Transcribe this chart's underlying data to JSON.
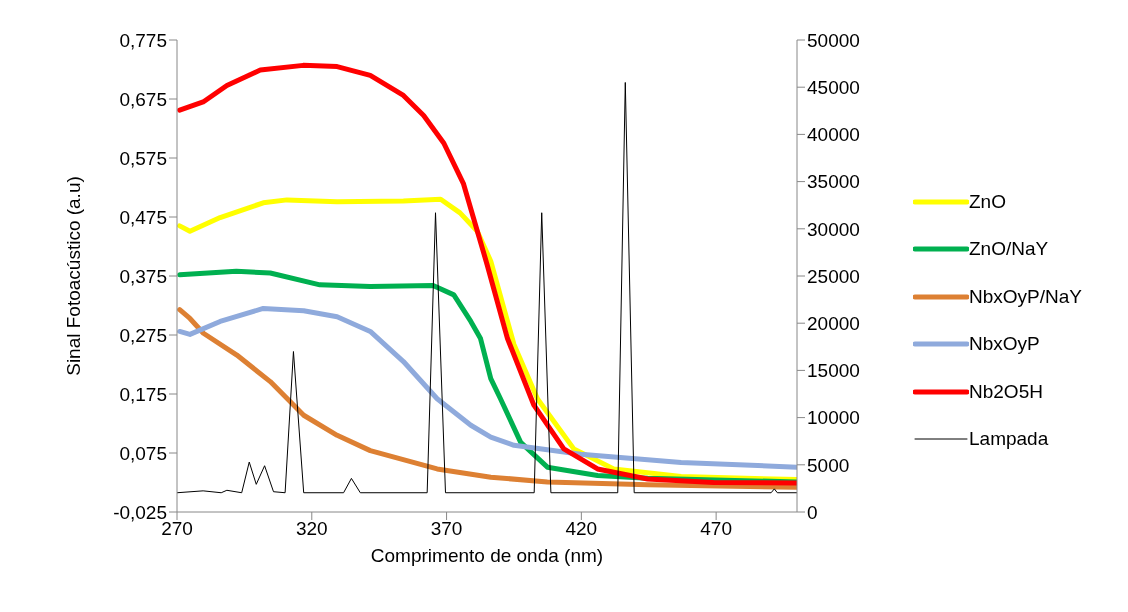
{
  "chart_data": {
    "type": "line",
    "xlabel": "Comprimento de onda (nm)",
    "ylabel": "Sinal Fotoacústico (a.u)",
    "xlim": [
      270,
      500
    ],
    "xticks": [
      270,
      320,
      370,
      420,
      470
    ],
    "ylim": [
      -0.025,
      0.775
    ],
    "yticks": [
      {
        "value": -0.025,
        "label": "-0,025"
      },
      {
        "value": 0.075,
        "label": "0,075"
      },
      {
        "value": 0.175,
        "label": "0,175"
      },
      {
        "value": 0.275,
        "label": "0,275"
      },
      {
        "value": 0.375,
        "label": "0,375"
      },
      {
        "value": 0.475,
        "label": "0,475"
      },
      {
        "value": 0.575,
        "label": "0,575"
      },
      {
        "value": 0.675,
        "label": "0,675"
      },
      {
        "value": 0.775,
        "label": "0,775"
      }
    ],
    "y2lim": [
      0,
      50000
    ],
    "y2ticks": [
      0,
      5000,
      10000,
      15000,
      20000,
      25000,
      30000,
      35000,
      40000,
      45000,
      50000
    ],
    "legend": "right",
    "series": [
      {
        "name": "ZnO",
        "color": "#ffff00",
        "x": [
          271,
          274.8,
          286,
          302,
          310.8,
          329.4,
          354,
          367.8,
          375,
          381.4,
          386.4,
          395,
          403.7,
          417.2,
          432,
          457,
          500
        ],
        "values": [
          0.46,
          0.451,
          0.474,
          0.499,
          0.504,
          0.501,
          0.502,
          0.505,
          0.482,
          0.451,
          0.4,
          0.259,
          0.167,
          0.082,
          0.048,
          0.035,
          0.03
        ]
      },
      {
        "name": "ZnO/NaY",
        "color": "#00b050",
        "x": [
          271,
          292,
          304.6,
          323,
          341.7,
          365,
          372.7,
          379,
          382.6,
          386.4,
          390,
          397.5,
          407.4,
          426,
          444.6,
          500
        ],
        "values": [
          0.377,
          0.383,
          0.38,
          0.36,
          0.357,
          0.359,
          0.343,
          0.298,
          0.269,
          0.201,
          0.167,
          0.093,
          0.051,
          0.037,
          0.032,
          0.026
        ]
      },
      {
        "name": "NbxOyP/NaY",
        "color": "#dd8033",
        "x": [
          271,
          274.8,
          279.8,
          292.2,
          304.6,
          317,
          329.4,
          341.7,
          366.5,
          386.4,
          407.4,
          444.6,
          500
        ],
        "values": [
          0.318,
          0.303,
          0.278,
          0.241,
          0.196,
          0.139,
          0.105,
          0.079,
          0.048,
          0.034,
          0.026,
          0.021,
          0.017
        ]
      },
      {
        "name": "NbxOyP",
        "color": "#8faadc",
        "x": [
          271,
          274.8,
          286,
          302,
          317,
          329.4,
          341.7,
          354,
          366.5,
          379,
          386.4,
          395,
          419.8,
          457,
          500
        ],
        "values": [
          0.281,
          0.276,
          0.298,
          0.32,
          0.316,
          0.306,
          0.281,
          0.23,
          0.167,
          0.122,
          0.102,
          0.088,
          0.073,
          0.059,
          0.051
        ]
      },
      {
        "name": "Nb2O5H",
        "color": "#ff0000",
        "x": [
          271,
          279.7,
          288.5,
          300.9,
          316.8,
          329.4,
          341.7,
          354,
          361.5,
          369,
          376.3,
          385,
          392.6,
          402.4,
          413.5,
          426,
          444.6,
          469,
          500
        ],
        "values": [
          0.656,
          0.67,
          0.698,
          0.724,
          0.732,
          0.73,
          0.715,
          0.681,
          0.647,
          0.6,
          0.531,
          0.395,
          0.269,
          0.156,
          0.082,
          0.048,
          0.031,
          0.025,
          0.024
        ]
      },
      {
        "name": "Lampada",
        "color": "#000000",
        "axis": "y2",
        "x": [
          270,
          279.7,
          286.4,
          288.5,
          294,
          296.8,
          299.4,
          302.5,
          305.8,
          310.1,
          313.2,
          317,
          331.8,
          334.7,
          338,
          362.8,
          365.9,
          369.6,
          402.5,
          405.3,
          408.7,
          433.5,
          436.3,
          439.6,
          490.4,
          491.6,
          492.7,
          500
        ],
        "values": [
          2040,
          2240,
          2040,
          2300,
          2040,
          5290,
          2930,
          4900,
          2150,
          2040,
          17000,
          2040,
          2040,
          3560,
          2040,
          2040,
          31700,
          2040,
          2040,
          31700,
          2040,
          2040,
          45500,
          2040,
          2040,
          2450,
          2040,
          2040
        ]
      }
    ]
  }
}
